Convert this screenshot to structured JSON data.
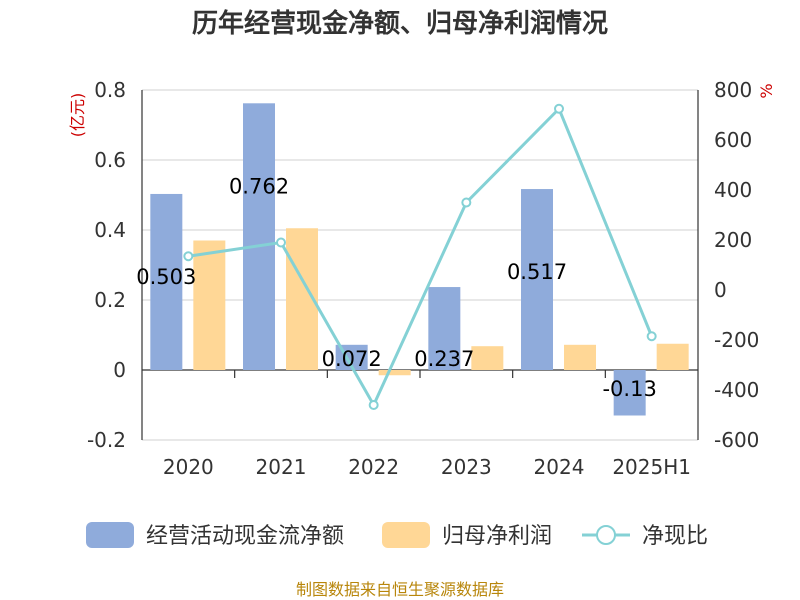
{
  "title": "历年经营现金净额、归母净利润情况",
  "source": "制图数据来自恒生聚源数据库",
  "colors": {
    "cash": "#8fabdb",
    "profit": "#ffd796",
    "ratio": "#84d1d5",
    "unit": "#cc0000"
  },
  "chart_data": {
    "type": "bar",
    "categories": [
      "2020",
      "2021",
      "2022",
      "2023",
      "2024",
      "2025H1"
    ],
    "left_axis": {
      "unit": "(亿元)",
      "ylim": [
        -0.2,
        0.8
      ],
      "ticks": [
        -0.2,
        0,
        0.2,
        0.4,
        0.6,
        0.8
      ],
      "tick_labels": [
        "-0.2",
        "0",
        "0.2",
        "0.4",
        "0.6",
        "0.8"
      ]
    },
    "right_axis": {
      "unit": "%",
      "ylim": [
        -600,
        800
      ],
      "ticks": [
        -600,
        -400,
        -200,
        0,
        200,
        400,
        600,
        800
      ],
      "tick_labels": [
        "-600",
        "-400",
        "-200",
        "0",
        "200",
        "400",
        "600",
        "800"
      ]
    },
    "series": [
      {
        "name": "经营活动现金流净额",
        "type": "bar",
        "axis": "left",
        "values": [
          0.503,
          0.762,
          0.072,
          0.237,
          0.517,
          -0.13
        ],
        "labels": [
          "0.503",
          "0.762",
          "0.072",
          "0.237",
          "0.517",
          "-0.13"
        ]
      },
      {
        "name": "归母净利润",
        "type": "bar",
        "axis": "left",
        "values": [
          0.37,
          0.405,
          -0.015,
          0.068,
          0.072,
          0.075
        ]
      },
      {
        "name": "净现比",
        "type": "line",
        "axis": "right",
        "values": [
          135,
          190,
          -460,
          350,
          725,
          -185
        ]
      }
    ],
    "legend_position": "bottom",
    "grid": true
  }
}
